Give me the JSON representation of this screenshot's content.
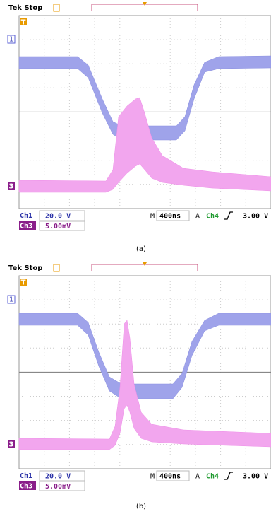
{
  "panels": [
    {
      "status": "Tek Stop",
      "trigger_marker": "T",
      "ch1_marker": "1",
      "ch3_marker": "3",
      "ch1_label": "Ch1",
      "ch1_scale": "20.0 V",
      "ch3_label": "Ch3",
      "ch3_scale": "5.00mV",
      "timebase_label": "M",
      "timebase": "400ns",
      "trigger_mode": "A",
      "trigger_source": "Ch4",
      "trigger_level": "3.00 V",
      "caption": "(a)"
    },
    {
      "status": "Tek Stop",
      "trigger_marker": "T",
      "ch1_marker": "1",
      "ch3_marker": "3",
      "ch1_label": "Ch1",
      "ch1_scale": "20.0 V",
      "ch3_label": "Ch3",
      "ch3_scale": "5.00mV",
      "timebase_label": "M",
      "timebase": "400ns",
      "trigger_mode": "A",
      "trigger_source": "Ch4",
      "trigger_level": "3.00 V",
      "caption": "(b)"
    }
  ]
}
